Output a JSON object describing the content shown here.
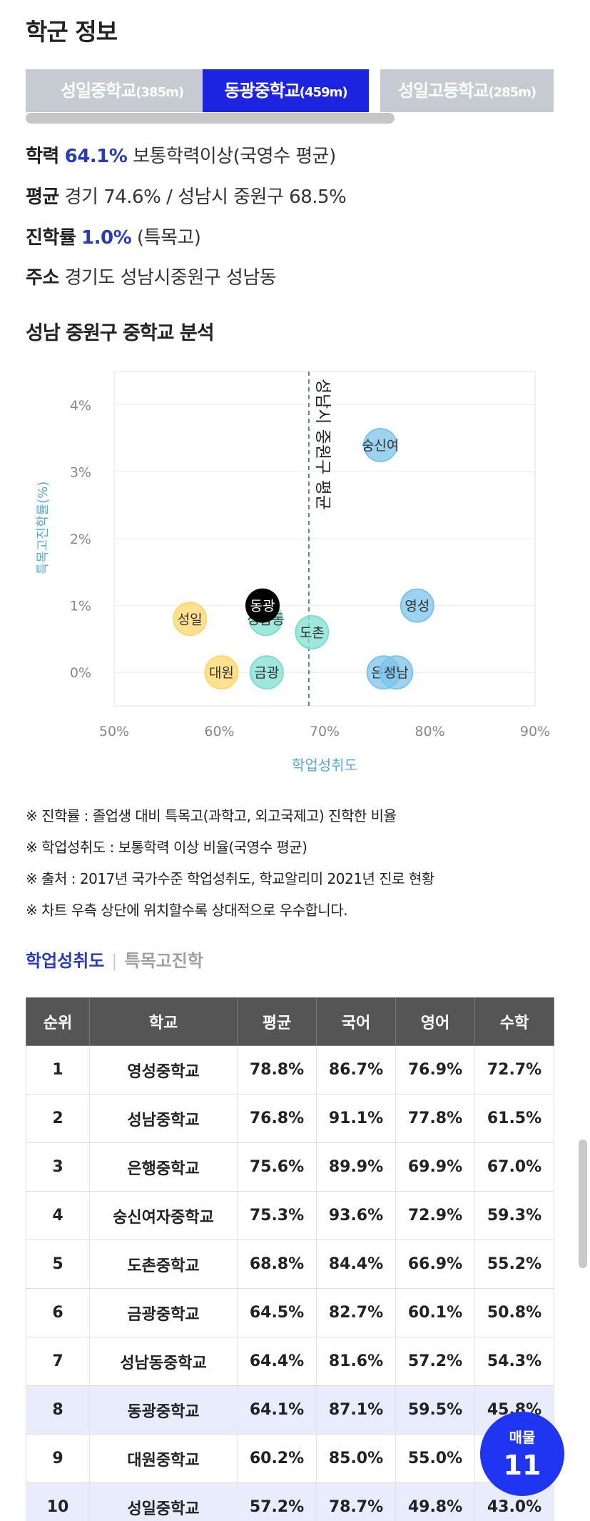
{
  "header": {
    "title": "학군 정보"
  },
  "tabs": [
    {
      "name": "성일중학교",
      "dist": "(385m)"
    },
    {
      "name": "동광중학교",
      "dist": "(459m)"
    },
    {
      "name": "성일고등학교",
      "dist": "(285m)"
    }
  ],
  "info": {
    "academic_label": "학력",
    "academic_value": "64.1%",
    "academic_desc": " 보통학력이상(국영수 평균)",
    "avg_label": "평균",
    "avg_value": " 경기 74.6% / 성남시 중원구 68.5%",
    "advance_label": "진학률",
    "advance_value": "1.0%",
    "advance_desc": " (특목고)",
    "address_label": "주소",
    "address_value": " 경기도 성남시중원구 성남동"
  },
  "analysis_title": "성남 중원구 중학교 분석",
  "chart_data": {
    "type": "scatter",
    "xlabel": "학업성취도",
    "ylabel": "특목고진학률(%)",
    "xlim": [
      50,
      90
    ],
    "ylim": [
      -0.5,
      4.5
    ],
    "xticks": [
      "50%",
      "60%",
      "70%",
      "80%",
      "90%"
    ],
    "yticks": [
      "0%",
      "1%",
      "2%",
      "3%",
      "4%"
    ],
    "reference_line": {
      "x": 68.5,
      "label": "성남시 중원구 평균"
    },
    "points": [
      {
        "label": "숭신여",
        "x": 75.3,
        "y": 3.4,
        "color": "#7cc4ea"
      },
      {
        "label": "영성",
        "x": 78.8,
        "y": 1.0,
        "color": "#7cc4ea"
      },
      {
        "label": "동광",
        "x": 64.1,
        "y": 1.0,
        "color": "#000000"
      },
      {
        "label": "성남동",
        "x": 64.4,
        "y": 0.8,
        "color": "#7fddd2"
      },
      {
        "label": "도촌",
        "x": 68.8,
        "y": 0.6,
        "color": "#7fddd2"
      },
      {
        "label": "성일",
        "x": 57.2,
        "y": 0.8,
        "color": "#ffd76a"
      },
      {
        "label": "대원",
        "x": 60.2,
        "y": 0.0,
        "color": "#ffd76a"
      },
      {
        "label": "금광",
        "x": 64.5,
        "y": 0.0,
        "color": "#7fddd2"
      },
      {
        "label": "은행",
        "x": 75.6,
        "y": 0.0,
        "color": "#7cc4ea"
      },
      {
        "label": "성남",
        "x": 76.8,
        "y": 0.0,
        "color": "#7cc4ea"
      }
    ]
  },
  "notes": [
    "※ 진학률 : 졸업생 대비 특목고(과학고, 외고국제고) 진학한 비율",
    "※ 학업성취도 : 보통학력 이상 비율(국영수 평균)",
    "※ 출처 : 2017년 국가수준 학업성취도, 학교알리미 2021년 진로 현황",
    "※ 차트 우측 상단에 위치할수록 상대적으로 우수합니다."
  ],
  "subtabs": {
    "active": "학업성취도",
    "sep": "|",
    "inactive": "특목고진학"
  },
  "table": {
    "headers": [
      "순위",
      "학교",
      "평균",
      "국어",
      "영어",
      "수학"
    ],
    "rows": [
      [
        "1",
        "영성중학교",
        "78.8%",
        "86.7%",
        "76.9%",
        "72.7%"
      ],
      [
        "2",
        "성남중학교",
        "76.8%",
        "91.1%",
        "77.8%",
        "61.5%"
      ],
      [
        "3",
        "은행중학교",
        "75.6%",
        "89.9%",
        "69.9%",
        "67.0%"
      ],
      [
        "4",
        "숭신여자중학교",
        "75.3%",
        "93.6%",
        "72.9%",
        "59.3%"
      ],
      [
        "5",
        "도촌중학교",
        "68.8%",
        "84.4%",
        "66.9%",
        "55.2%"
      ],
      [
        "6",
        "금광중학교",
        "64.5%",
        "82.7%",
        "60.1%",
        "50.8%"
      ],
      [
        "7",
        "성남동중학교",
        "64.4%",
        "81.6%",
        "57.2%",
        "54.3%"
      ],
      [
        "8",
        "동광중학교",
        "64.1%",
        "87.1%",
        "59.5%",
        "45.8%"
      ],
      [
        "9",
        "대원중학교",
        "60.2%",
        "85.0%",
        "55.0%",
        ""
      ],
      [
        "10",
        "성일중학교",
        "57.2%",
        "78.7%",
        "49.8%",
        "43.0%"
      ]
    ]
  },
  "badge": {
    "label": "매물",
    "count": "11"
  }
}
